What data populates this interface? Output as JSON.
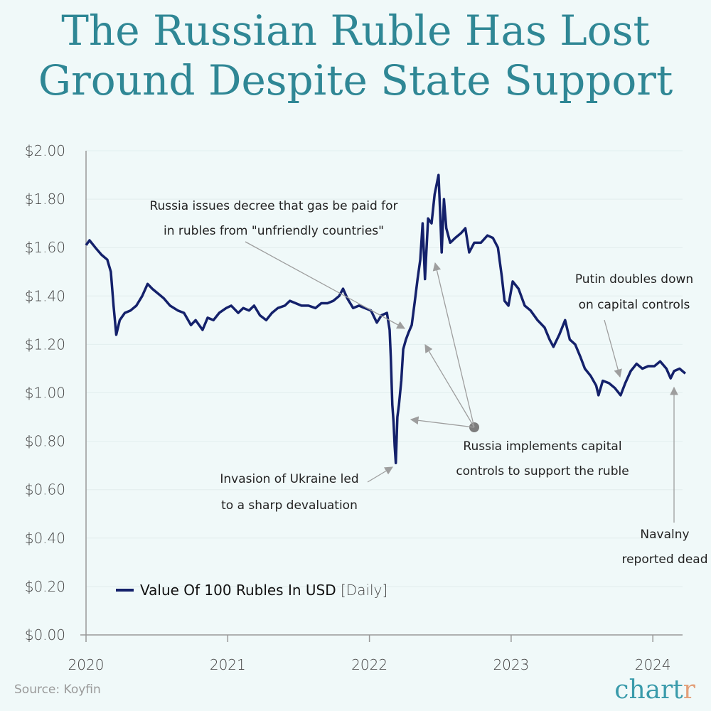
{
  "title_lines": [
    "The Russian Ruble Has Lost",
    "Ground Despite State Support"
  ],
  "source": "Source: Koyfin",
  "logo": {
    "main": "chart",
    "accent": "r"
  },
  "colors": {
    "line": "#14216b",
    "title": "#2f8795",
    "arrow": "#9e9e9e",
    "background": "#f0f9f9"
  },
  "chart_data": {
    "type": "line",
    "title": "The Russian Ruble Has Lost Ground Despite State Support",
    "xlabel": "",
    "ylabel": "",
    "ylim": [
      0,
      2
    ],
    "xlim": [
      "2020-01-01",
      "2024-03-31"
    ],
    "y_ticks": [
      "$0.00",
      "$0.20",
      "$0.40",
      "$0.60",
      "$0.80",
      "$1.00",
      "$1.20",
      "$1.40",
      "$1.60",
      "$1.80",
      "$2.00"
    ],
    "x_ticks": [
      "2020",
      "2021",
      "2022",
      "2023",
      "2024"
    ],
    "grid": "horizontal faint",
    "legend": {
      "position": "bottom-left",
      "label": "Value Of 100 Rubles In USD",
      "suffix": "[Daily]"
    },
    "series": [
      {
        "name": "Value Of 100 Rubles In USD",
        "points": [
          [
            "2020-01-01",
            1.61
          ],
          [
            "2020-01-10",
            1.63
          ],
          [
            "2020-01-25",
            1.6
          ],
          [
            "2020-02-10",
            1.57
          ],
          [
            "2020-02-25",
            1.55
          ],
          [
            "2020-03-05",
            1.5
          ],
          [
            "2020-03-12",
            1.36
          ],
          [
            "2020-03-19",
            1.24
          ],
          [
            "2020-03-28",
            1.3
          ],
          [
            "2020-04-10",
            1.33
          ],
          [
            "2020-04-25",
            1.34
          ],
          [
            "2020-05-10",
            1.36
          ],
          [
            "2020-05-25",
            1.4
          ],
          [
            "2020-06-08",
            1.45
          ],
          [
            "2020-06-20",
            1.43
          ],
          [
            "2020-07-05",
            1.41
          ],
          [
            "2020-07-20",
            1.39
          ],
          [
            "2020-08-05",
            1.36
          ],
          [
            "2020-08-25",
            1.34
          ],
          [
            "2020-09-10",
            1.33
          ],
          [
            "2020-09-28",
            1.28
          ],
          [
            "2020-10-10",
            1.3
          ],
          [
            "2020-10-28",
            1.26
          ],
          [
            "2020-11-10",
            1.31
          ],
          [
            "2020-11-25",
            1.3
          ],
          [
            "2020-12-10",
            1.33
          ],
          [
            "2020-12-28",
            1.35
          ],
          [
            "2021-01-10",
            1.36
          ],
          [
            "2021-01-28",
            1.33
          ],
          [
            "2021-02-10",
            1.35
          ],
          [
            "2021-02-25",
            1.34
          ],
          [
            "2021-03-10",
            1.36
          ],
          [
            "2021-03-25",
            1.32
          ],
          [
            "2021-04-10",
            1.3
          ],
          [
            "2021-04-25",
            1.33
          ],
          [
            "2021-05-10",
            1.35
          ],
          [
            "2021-05-28",
            1.36
          ],
          [
            "2021-06-10",
            1.38
          ],
          [
            "2021-06-25",
            1.37
          ],
          [
            "2021-07-10",
            1.36
          ],
          [
            "2021-07-28",
            1.36
          ],
          [
            "2021-08-15",
            1.35
          ],
          [
            "2021-08-30",
            1.37
          ],
          [
            "2021-09-15",
            1.37
          ],
          [
            "2021-09-30",
            1.38
          ],
          [
            "2021-10-15",
            1.4
          ],
          [
            "2021-10-25",
            1.43
          ],
          [
            "2021-11-05",
            1.39
          ],
          [
            "2021-11-20",
            1.35
          ],
          [
            "2021-12-05",
            1.36
          ],
          [
            "2021-12-20",
            1.35
          ],
          [
            "2022-01-05",
            1.34
          ],
          [
            "2022-01-20",
            1.29
          ],
          [
            "2022-02-01",
            1.32
          ],
          [
            "2022-02-15",
            1.33
          ],
          [
            "2022-02-22",
            1.26
          ],
          [
            "2022-02-25",
            1.15
          ],
          [
            "2022-03-01",
            0.95
          ],
          [
            "2022-03-04",
            0.88
          ],
          [
            "2022-03-07",
            0.78
          ],
          [
            "2022-03-10",
            0.71
          ],
          [
            "2022-03-14",
            0.9
          ],
          [
            "2022-03-18",
            0.95
          ],
          [
            "2022-03-24",
            1.05
          ],
          [
            "2022-03-29",
            1.18
          ],
          [
            "2022-04-05",
            1.22
          ],
          [
            "2022-04-12",
            1.25
          ],
          [
            "2022-04-20",
            1.28
          ],
          [
            "2022-04-28",
            1.38
          ],
          [
            "2022-05-05",
            1.47
          ],
          [
            "2022-05-12",
            1.55
          ],
          [
            "2022-05-18",
            1.7
          ],
          [
            "2022-05-24",
            1.47
          ],
          [
            "2022-06-01",
            1.72
          ],
          [
            "2022-06-10",
            1.7
          ],
          [
            "2022-06-18",
            1.82
          ],
          [
            "2022-06-28",
            1.9
          ],
          [
            "2022-07-02",
            1.75
          ],
          [
            "2022-07-06",
            1.58
          ],
          [
            "2022-07-12",
            1.8
          ],
          [
            "2022-07-18",
            1.68
          ],
          [
            "2022-07-28",
            1.62
          ],
          [
            "2022-08-10",
            1.64
          ],
          [
            "2022-08-25",
            1.66
          ],
          [
            "2022-09-05",
            1.68
          ],
          [
            "2022-09-15",
            1.58
          ],
          [
            "2022-09-28",
            1.62
          ],
          [
            "2022-10-15",
            1.62
          ],
          [
            "2022-11-01",
            1.65
          ],
          [
            "2022-11-15",
            1.64
          ],
          [
            "2022-11-28",
            1.6
          ],
          [
            "2022-12-08",
            1.48
          ],
          [
            "2022-12-15",
            1.38
          ],
          [
            "2022-12-25",
            1.36
          ],
          [
            "2023-01-05",
            1.46
          ],
          [
            "2023-01-20",
            1.43
          ],
          [
            "2023-02-05",
            1.36
          ],
          [
            "2023-02-20",
            1.34
          ],
          [
            "2023-03-10",
            1.3
          ],
          [
            "2023-03-28",
            1.27
          ],
          [
            "2023-04-10",
            1.22
          ],
          [
            "2023-04-20",
            1.19
          ],
          [
            "2023-05-05",
            1.24
          ],
          [
            "2023-05-20",
            1.3
          ],
          [
            "2023-06-01",
            1.22
          ],
          [
            "2023-06-15",
            1.2
          ],
          [
            "2023-06-28",
            1.15
          ],
          [
            "2023-07-10",
            1.1
          ],
          [
            "2023-07-25",
            1.07
          ],
          [
            "2023-08-08",
            1.03
          ],
          [
            "2023-08-14",
            0.99
          ],
          [
            "2023-08-25",
            1.05
          ],
          [
            "2023-09-10",
            1.04
          ],
          [
            "2023-09-25",
            1.02
          ],
          [
            "2023-10-10",
            0.99
          ],
          [
            "2023-10-22",
            1.04
          ],
          [
            "2023-11-05",
            1.09
          ],
          [
            "2023-11-20",
            1.12
          ],
          [
            "2023-12-05",
            1.1
          ],
          [
            "2023-12-20",
            1.11
          ],
          [
            "2024-01-05",
            1.11
          ],
          [
            "2024-01-20",
            1.13
          ],
          [
            "2024-02-05",
            1.1
          ],
          [
            "2024-02-16",
            1.06
          ],
          [
            "2024-02-25",
            1.09
          ],
          [
            "2024-03-10",
            1.1
          ],
          [
            "2024-03-25",
            1.08
          ]
        ]
      }
    ],
    "annotations": [
      {
        "key": "gas",
        "lines": [
          "Russia issues decree that gas be paid for",
          "in rubles from \"unfriendly countries\""
        ]
      },
      {
        "key": "controls",
        "lines": [
          "Russia implements capital",
          "controls to support the ruble"
        ]
      },
      {
        "key": "invasion",
        "lines": [
          "Invasion of Ukraine led",
          "to a sharp devaluation"
        ]
      },
      {
        "key": "putin",
        "lines": [
          "Putin doubles down",
          "on capital controls"
        ]
      },
      {
        "key": "navalny",
        "lines": [
          "Navalny",
          "reported dead"
        ]
      }
    ]
  }
}
